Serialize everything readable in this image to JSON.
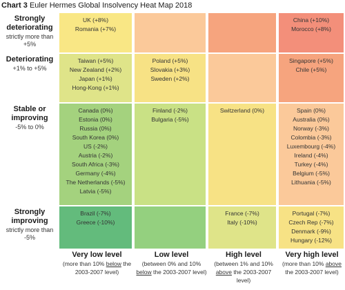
{
  "title": {
    "label": "Chart 3",
    "text": "Euler Hermes Global Insolvency Heat Map 2018"
  },
  "chart_data": {
    "type": "heatmap",
    "title": "Chart 3 Euler Hermes Global Insolvency Heat Map 2018",
    "rows": [
      {
        "main": "Strongly deteriorating",
        "sub": "strictly more than +5%"
      },
      {
        "main": "Deteriorating",
        "sub": "+1% to +5%"
      },
      {
        "main": "Stable or improving",
        "sub": "-5% to 0%"
      },
      {
        "main": "Strongly improving",
        "sub": "strictly more than -5%"
      }
    ],
    "columns": [
      {
        "main": "Very low level",
        "sub_pre": "(more than 10% ",
        "sub_u": "below",
        "sub_post": " the 2003-2007 level)"
      },
      {
        "main": "Low level",
        "sub_pre": "(between 0% and 10% ",
        "sub_u": "below",
        "sub_post": " the 2003-2007 level)"
      },
      {
        "main": "High level",
        "sub_pre": "(between 1% and 10% ",
        "sub_u": "above",
        "sub_post": " the 2003-2007 level)"
      },
      {
        "main": "Very high level",
        "sub_pre": "(more than 10% ",
        "sub_u": "above",
        "sub_post": " the 2003-2007 level)"
      }
    ],
    "colors": [
      [
        "#f9e785",
        "#fbc99a",
        "#f6a47e",
        "#f38f7a"
      ],
      [
        "#dfe489",
        "#f7e285",
        "#fbc99a",
        "#f6a47e"
      ],
      [
        "#a4d27e",
        "#c9e185",
        "#f7e285",
        "#fbc99a"
      ],
      [
        "#63bb7c",
        "#94d07f",
        "#dfe489",
        "#f7e285"
      ]
    ],
    "cells": [
      [
        [
          "UK (+8%)",
          "Romania (+7%)"
        ],
        [],
        [],
        [
          "China (+10%)",
          "Morocco (+8%)"
        ]
      ],
      [
        [
          "Taiwan (+5%)",
          "New Zealand (+2%)",
          "Japan (+1%)",
          "Hong-Kong (+1%)"
        ],
        [
          "Poland (+5%)",
          "Slovakia (+3%)",
          "Sweden (+2%)"
        ],
        [],
        [
          "Singapore (+5%)",
          "Chile (+5%)"
        ]
      ],
      [
        [
          "Canada (0%)",
          "Estonia (0%)",
          "Russia (0%)",
          "South Korea (0%)",
          "US (-2%)",
          "Austria (-2%)",
          "South Africa (-3%)",
          "Germany (-4%)",
          "The Netherlands (-5%)",
          "Latvia (-5%)"
        ],
        [
          "Finland (-2%)",
          "Bulgaria (-5%)"
        ],
        [
          "Switzerland (0%)"
        ],
        [
          "Spain (0%)",
          "Australia (0%)",
          "Norway (-3%)",
          "Colombia (-3%)",
          "Luxembourg (-4%)",
          "Ireland (-4%)",
          "Turkey (-4%)",
          "Belgium (-5%)",
          "Lithuania (-5%)"
        ]
      ],
      [
        [
          "Brazil (-7%)",
          "Greece (-10%)"
        ],
        [],
        [
          "France (-7%)",
          "Italy (-10%)"
        ],
        [
          "Portugal (-7%)",
          "Czech Rep (-7%)",
          "Denmark (-9%)",
          "Hungary (-12%)"
        ]
      ]
    ]
  }
}
